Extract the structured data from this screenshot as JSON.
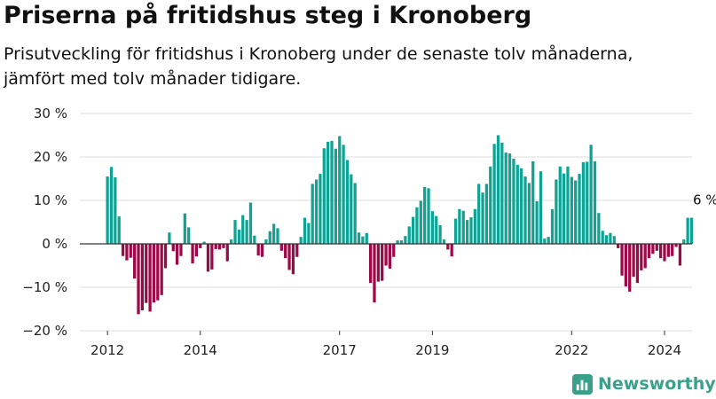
{
  "title": "Priserna på fritidshus steg i Kronoberg",
  "subtitle": "Prisutveckling för fritidshus i Kronoberg under de senaste tolv månaderna, jämfört med tolv månader tidigare.",
  "brand": {
    "name": "Newsworthy",
    "icon": "newsworthy-logo-icon"
  },
  "colors": {
    "positive": "#0fa394",
    "negative": "#9b0a47",
    "grid": "#dddddd",
    "axis": "#333333"
  },
  "chart_data": {
    "type": "bar",
    "title": "Priserna på fritidshus steg i Kronoberg",
    "xlabel": "",
    "ylabel": "",
    "ylim": [
      -20,
      30
    ],
    "yticks": [
      -20,
      -10,
      0,
      10,
      20,
      30
    ],
    "ytick_labels": [
      "−20 %",
      "−10 %",
      "0 %",
      "10 %",
      "20 %",
      "30 %"
    ],
    "xticks": [
      {
        "label": "2012",
        "at": "2012-01"
      },
      {
        "label": "2014",
        "at": "2014-01"
      },
      {
        "label": "2017",
        "at": "2017-01"
      },
      {
        "label": "2019",
        "at": "2019-01"
      },
      {
        "label": "2022",
        "at": "2022-01"
      },
      {
        "label": "2024",
        "at": "2024-01"
      }
    ],
    "annotation": {
      "text": "6 %",
      "at": "2024-12",
      "value": 6
    },
    "grid": true,
    "x_start": "2012-01",
    "x_end": "2024-12",
    "values": [
      15.5,
      17.7,
      15.3,
      6.3,
      -2.8,
      -3.8,
      -3.2,
      -8,
      -16.2,
      -15.3,
      -13.6,
      -15.6,
      -13.5,
      -13,
      -11.8,
      -5.6,
      2.6,
      -1.7,
      -4.8,
      -2.8,
      7,
      3.8,
      -4.5,
      -2.9,
      -1,
      0.5,
      -6.4,
      -5.9,
      -1.2,
      -1.3,
      -1,
      -4,
      1,
      5.5,
      3.3,
      6.6,
      5.5,
      9.5,
      1.9,
      -2.7,
      -3,
      1,
      2.9,
      4.6,
      3.6,
      -1.6,
      -3.3,
      -6,
      -7,
      -3,
      1.6,
      6,
      4.8,
      13.8,
      14.8,
      16.1,
      22,
      23.5,
      23.7,
      21.9,
      24.8,
      22.8,
      19.3,
      16,
      14,
      2.6,
      1.7,
      2.5,
      -9,
      -13.5,
      -8.7,
      -8.5,
      -5,
      -5.7,
      -3,
      0.8,
      0.8,
      1.8,
      4,
      6.2,
      8.4,
      9.9,
      13.1,
      12.8,
      7.5,
      6.4,
      4.3,
      1,
      -1.3,
      -2.9,
      5.8,
      8,
      7.6,
      5.5,
      6.1,
      8,
      13.8,
      11.8,
      13.8,
      17.8,
      23,
      25,
      23.3,
      21,
      20.8,
      19.6,
      18.2,
      17.4,
      15.5,
      14,
      19,
      9.8,
      16.7,
      1.2,
      1.6,
      8,
      14.8,
      17.8,
      16.2,
      17.8,
      15.4,
      14.6,
      16.1,
      18.8,
      18.9,
      22.8,
      19,
      7.1,
      3,
      2,
      2.5,
      1.8,
      -1,
      -7.3,
      -9.8,
      -11,
      -7.6,
      -9,
      -6.1,
      -5.6,
      -3.3,
      -2.3,
      -1.6,
      -3.3,
      -4,
      -3,
      -2.8,
      -0.7,
      -5,
      1,
      6,
      6
    ]
  }
}
